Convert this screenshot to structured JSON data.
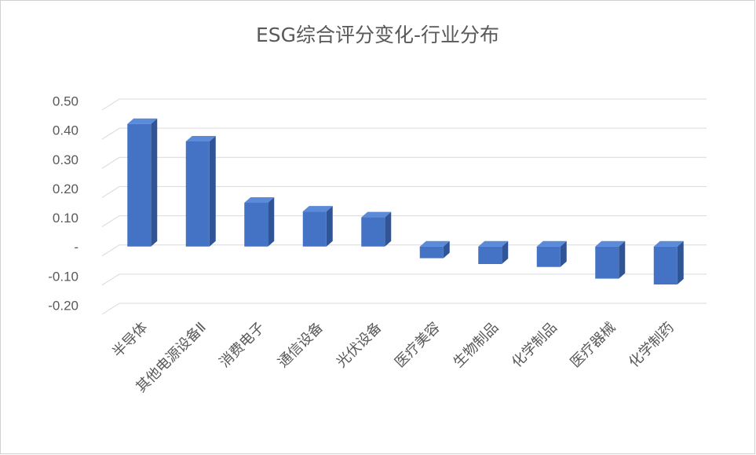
{
  "chart_data": {
    "type": "bar3d",
    "title": "ESG综合评分变化-行业分布",
    "categories": [
      "半导体",
      "其他电源设备Ⅱ",
      "消费电子",
      "通信设备",
      "光伏设备",
      "医疗美容",
      "生物制品",
      "化学制品",
      "医疗器械",
      "化学制药"
    ],
    "values": [
      0.42,
      0.36,
      0.15,
      0.12,
      0.1,
      -0.04,
      -0.06,
      -0.07,
      -0.11,
      -0.13
    ],
    "color": "#4472c4",
    "ylim": [
      -0.2,
      0.5
    ],
    "yticks": [
      {
        "value": -0.2,
        "label": "-0.20"
      },
      {
        "value": -0.1,
        "label": "-0.10"
      },
      {
        "value": 0,
        "label": "-"
      },
      {
        "value": 0.1,
        "label": "0.10"
      },
      {
        "value": 0.2,
        "label": "0.20"
      },
      {
        "value": 0.3,
        "label": "0.30"
      },
      {
        "value": 0.4,
        "label": "0.40"
      },
      {
        "value": 0.5,
        "label": "0.50"
      }
    ],
    "grid": true
  }
}
